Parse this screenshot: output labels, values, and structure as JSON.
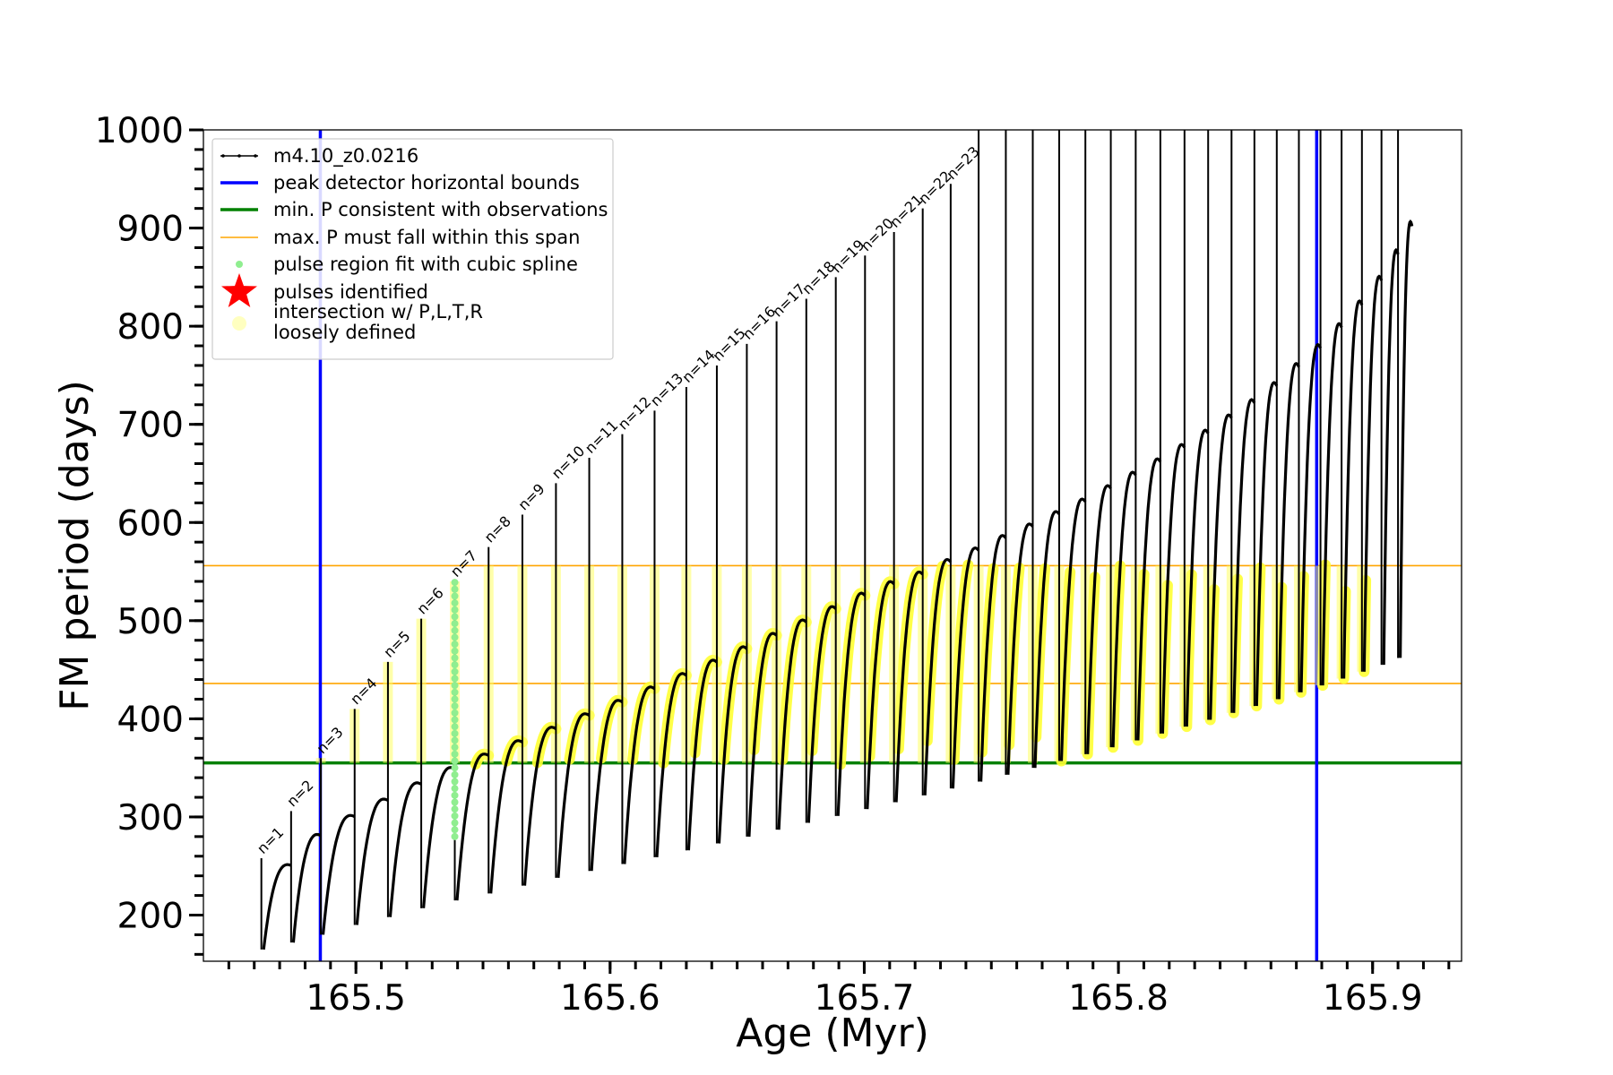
{
  "chart_data": {
    "type": "line",
    "xlabel": "Age (Myr)",
    "ylabel": "FM period (days)",
    "xlim": [
      165.44,
      165.935
    ],
    "ylim": [
      153,
      1000
    ],
    "xticks": [
      {
        "value": 165.5,
        "label": "165.5"
      },
      {
        "value": 165.6,
        "label": "165.6"
      },
      {
        "value": 165.7,
        "label": "165.7"
      },
      {
        "value": 165.8,
        "label": "165.8"
      },
      {
        "value": 165.9,
        "label": "165.9"
      }
    ],
    "yticks": [
      {
        "value": 200,
        "label": "200"
      },
      {
        "value": 300,
        "label": "300"
      },
      {
        "value": 400,
        "label": "400"
      },
      {
        "value": 500,
        "label": "500"
      },
      {
        "value": 600,
        "label": "600"
      },
      {
        "value": 700,
        "label": "700"
      },
      {
        "value": 800,
        "label": "800"
      },
      {
        "value": 900,
        "label": "900"
      },
      {
        "value": 1000,
        "label": "1000"
      }
    ],
    "legend": {
      "placement": "upper-left",
      "entries": [
        {
          "label": "m4.10_z0.0216",
          "marker": "line-dots",
          "color": "#000000"
        },
        {
          "label": "peak detector horizontal bounds",
          "marker": "line",
          "color": "#0000ff"
        },
        {
          "label": "min. P consistent with observations",
          "marker": "line",
          "color": "#008000"
        },
        {
          "label": "max. P must fall within this span",
          "marker": "thin-line",
          "color": "#ffa500"
        },
        {
          "label": "pulse region fit with cubic spline",
          "marker": "dot",
          "color": "#90ee90"
        },
        {
          "label": "pulses identified",
          "marker": "star",
          "color": "#ff0000"
        },
        {
          "label": "intersection w/ P,L,T,R",
          "label2": "loosely defined",
          "marker": "circle",
          "color": "#ffffc0"
        }
      ]
    },
    "vertical_bounds": [
      165.486,
      165.878
    ],
    "min_period": 355,
    "max_period_span": [
      436,
      556
    ],
    "pulses": [
      {
        "label": "n=1",
        "age": 165.4628,
        "peak": 258,
        "min": 165,
        "amax": 256
      },
      {
        "label": "n=2",
        "age": 165.4745,
        "peak": 306,
        "min": 172,
        "amax": 288
      },
      {
        "label": "n=3",
        "age": 165.4862,
        "peak": 360,
        "min": 180,
        "amax": 308
      },
      {
        "label": "n=4",
        "age": 165.4995,
        "peak": 410,
        "min": 190,
        "amax": 325
      },
      {
        "label": "n=5",
        "age": 165.5126,
        "peak": 458,
        "min": 198,
        "amax": 342
      },
      {
        "label": "n=6",
        "age": 165.5257,
        "peak": 502,
        "min": 207,
        "amax": 358
      },
      {
        "label": "n=7",
        "age": 165.5389,
        "peak": 540,
        "min": 215,
        "amax": 372
      },
      {
        "label": "n=8",
        "age": 165.5522,
        "peak": 575,
        "min": 222,
        "amax": 386
      },
      {
        "label": "n=9",
        "age": 165.5655,
        "peak": 608,
        "min": 230,
        "amax": 400
      },
      {
        "label": "n=10",
        "age": 165.5787,
        "peak": 640,
        "min": 238,
        "amax": 414
      },
      {
        "label": "n=11",
        "age": 165.5918,
        "peak": 666,
        "min": 245,
        "amax": 428
      },
      {
        "label": "n=12",
        "age": 165.6048,
        "peak": 690,
        "min": 252,
        "amax": 442
      },
      {
        "label": "n=13",
        "age": 165.6175,
        "peak": 714,
        "min": 259,
        "amax": 456
      },
      {
        "label": "n=14",
        "age": 165.63,
        "peak": 738,
        "min": 266,
        "amax": 470
      },
      {
        "label": "n=15",
        "age": 165.642,
        "peak": 760,
        "min": 273,
        "amax": 484
      },
      {
        "label": "n=16",
        "age": 165.6538,
        "peak": 782,
        "min": 280,
        "amax": 498
      },
      {
        "label": "n=17",
        "age": 165.6655,
        "peak": 805,
        "min": 287,
        "amax": 512
      },
      {
        "label": "n=18",
        "age": 165.6772,
        "peak": 828,
        "min": 294,
        "amax": 526
      },
      {
        "label": "n=19",
        "age": 165.6888,
        "peak": 850,
        "min": 301,
        "amax": 540
      },
      {
        "label": "n=20",
        "age": 165.7003,
        "peak": 872,
        "min": 308,
        "amax": 552
      },
      {
        "label": "n=21",
        "age": 165.7117,
        "peak": 896,
        "min": 315,
        "amax": 562
      },
      {
        "label": "n=22",
        "age": 165.723,
        "peak": 920,
        "min": 322,
        "amax": 575
      },
      {
        "label": "n=23",
        "age": 165.734,
        "peak": 945,
        "min": 329,
        "amax": 587
      },
      {
        "label": "",
        "age": 165.745,
        "peak": 1000,
        "min": 336,
        "amax": 600
      },
      {
        "label": "",
        "age": 165.7557,
        "peak": 1000,
        "min": 343,
        "amax": 612
      },
      {
        "label": "",
        "age": 165.7663,
        "peak": 1000,
        "min": 350,
        "amax": 625
      },
      {
        "label": "",
        "age": 165.7767,
        "peak": 1000,
        "min": 357,
        "amax": 638
      },
      {
        "label": "",
        "age": 165.787,
        "peak": 1000,
        "min": 364,
        "amax": 652
      },
      {
        "label": "",
        "age": 165.797,
        "peak": 1000,
        "min": 371,
        "amax": 666
      },
      {
        "label": "",
        "age": 165.8068,
        "peak": 1000,
        "min": 378,
        "amax": 680
      },
      {
        "label": "",
        "age": 165.8165,
        "peak": 1000,
        "min": 385,
        "amax": 695
      },
      {
        "label": "",
        "age": 165.826,
        "peak": 1000,
        "min": 392,
        "amax": 710
      },
      {
        "label": "",
        "age": 165.8353,
        "peak": 1000,
        "min": 399,
        "amax": 726
      },
      {
        "label": "",
        "age": 165.8445,
        "peak": 1000,
        "min": 406,
        "amax": 742
      },
      {
        "label": "",
        "age": 165.8535,
        "peak": 1000,
        "min": 413,
        "amax": 760
      },
      {
        "label": "",
        "age": 165.8623,
        "peak": 1000,
        "min": 420,
        "amax": 780
      },
      {
        "label": "",
        "age": 165.871,
        "peak": 1000,
        "min": 427,
        "amax": 800
      },
      {
        "label": "",
        "age": 165.8795,
        "peak": 1000,
        "min": 434,
        "amax": 822
      },
      {
        "label": "",
        "age": 165.8878,
        "peak": 1000,
        "min": 441,
        "amax": 846
      },
      {
        "label": "",
        "age": 165.8958,
        "peak": 1000,
        "min": 448,
        "amax": 872
      },
      {
        "label": "",
        "age": 165.9035,
        "peak": 1000,
        "min": 455,
        "amax": 900
      },
      {
        "label": "",
        "age": 165.91,
        "peak": 1000,
        "min": 462,
        "amax": 930
      }
    ]
  }
}
